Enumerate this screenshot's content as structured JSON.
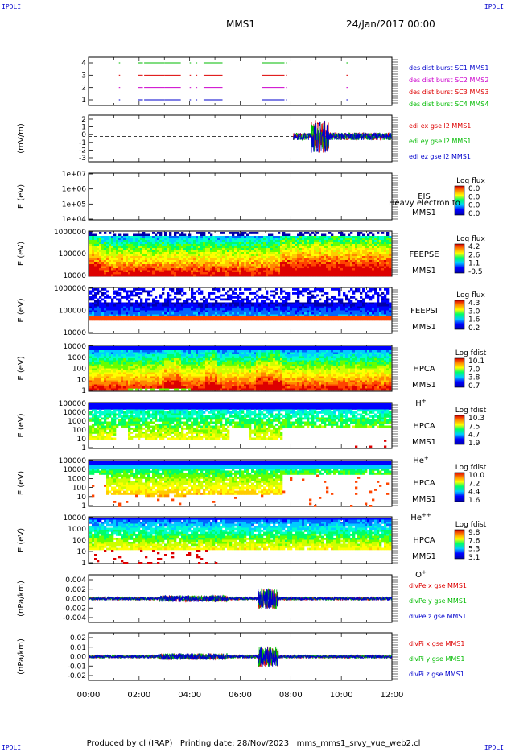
{
  "corners": {
    "tl": "IPDLI",
    "tr": "IPDLI",
    "bl": "IPDLI",
    "br": "IPDLI"
  },
  "header": {
    "mission": "MMS1",
    "date": "24/Jan/2017 00:00"
  },
  "footer": "Produced by cl (IRAP)   Printing date: 28/Nov/2023   mms_mms1_srvy_vue_web2.cl",
  "x_axis": {
    "type": "time",
    "range": [
      "00:00",
      "12:00"
    ],
    "tick_labels": [
      "00:00",
      "02:00",
      "04:00",
      "06:00",
      "08:00",
      "10:00",
      "12:00"
    ]
  },
  "colors": {
    "red": "#dd0000",
    "green": "#00bb00",
    "blue": "#0000cc",
    "magenta": "#cc00cc"
  },
  "chart_data": [
    {
      "type": "scatter",
      "panel": "burst",
      "ylabel": "",
      "ylim": [
        0.5,
        4.5
      ],
      "y_ticks": [
        "1",
        "2",
        "3",
        "4"
      ],
      "legend": [
        {
          "label": "des dist burst SC1 MMS1",
          "color": "#0000cc"
        },
        {
          "label": "des dist burst SC2 MMS2",
          "color": "#cc00cc"
        },
        {
          "label": "des dist burst SC3 MMS3",
          "color": "#dd0000"
        },
        {
          "label": "des dist burst SC4 MMS4",
          "color": "#00bb00"
        }
      ],
      "burst_intervals_hours": [
        [
          1.2,
          1.25
        ],
        [
          1.95,
          2.15
        ],
        [
          2.2,
          3.0
        ],
        [
          3.0,
          3.65
        ],
        [
          4.0,
          4.05
        ],
        [
          4.25,
          4.3
        ],
        [
          4.55,
          5.3
        ],
        [
          6.85,
          7.75
        ],
        [
          7.8,
          7.85
        ],
        [
          10.2,
          10.25
        ]
      ]
    },
    {
      "type": "line",
      "panel": "edi",
      "ylabel": "(mV/m)",
      "ylim": [
        -3,
        2.5
      ],
      "y_ticks": [
        "2",
        "1",
        "0",
        "-1",
        "-2",
        "-3"
      ],
      "reference_line": 0,
      "legend": [
        {
          "label": "edi ex gse l2 MMS1",
          "color": "#dd0000"
        },
        {
          "label": "edi ey gse l2 MMS1",
          "color": "#00bb00"
        },
        {
          "label": "edi ez gse l2 MMS1",
          "color": "#0000cc"
        }
      ],
      "data_range_hours": [
        8.1,
        12.0
      ]
    },
    {
      "type": "heatmap",
      "panel": "eis",
      "ylabel": "E (eV)",
      "y_scale": "log",
      "y_ticks": [
        "1e+07",
        "1e+06",
        "1e+05",
        "1e+04"
      ],
      "instrument": "EIS",
      "spacecraft": "MMS1",
      "note": "Heavy electron to",
      "colorbar": {
        "title": "Log flux",
        "labels": [
          "0.0",
          "0.0",
          "0.0",
          "0.0"
        ]
      }
    },
    {
      "type": "heatmap",
      "panel": "feepse",
      "ylabel": "E (eV)",
      "y_scale": "log",
      "y_ticks": [
        "1000000",
        "100000",
        "10000"
      ],
      "instrument": "FEEPSE",
      "spacecraft": "MMS1",
      "colorbar": {
        "title": "Log flux",
        "labels": [
          "4.2",
          "2.6",
          "1.1",
          "-0.5"
        ]
      }
    },
    {
      "type": "heatmap",
      "panel": "feepsi",
      "ylabel": "E (eV)",
      "y_scale": "log",
      "y_ticks": [
        "1000000",
        "100000",
        "10000"
      ],
      "instrument": "FEEPSI",
      "spacecraft": "MMS1",
      "colorbar": {
        "title": "Log flux",
        "labels": [
          "4.3",
          "3.0",
          "1.6",
          "0.2"
        ]
      }
    },
    {
      "type": "heatmap",
      "panel": "hpca_h",
      "ylabel": "E (eV)",
      "y_scale": "log",
      "y_ticks": [
        "10000",
        "1000",
        "100",
        "10",
        "1"
      ],
      "instrument": "HPCA",
      "spacecraft": "MMS1",
      "species": "H",
      "species_sup": "+",
      "colorbar": {
        "title": "Log fdist",
        "labels": [
          "10.1",
          "7.0",
          "3.8",
          "0.7"
        ]
      }
    },
    {
      "type": "heatmap",
      "panel": "hpca_he",
      "ylabel": "E (eV)",
      "y_scale": "log",
      "y_ticks": [
        "100000",
        "10000",
        "1000",
        "100",
        "10",
        "1"
      ],
      "instrument": "HPCA",
      "spacecraft": "MMS1",
      "species": "He",
      "species_sup": "+",
      "colorbar": {
        "title": "Log fdist",
        "labels": [
          "10.3",
          "7.5",
          "4.7",
          "1.9"
        ]
      }
    },
    {
      "type": "heatmap",
      "panel": "hpca_hepp",
      "ylabel": "E (eV)",
      "y_scale": "log",
      "y_ticks": [
        "100000",
        "10000",
        "1000",
        "100",
        "10",
        "1"
      ],
      "instrument": "HPCA",
      "spacecraft": "MMS1",
      "species": "He",
      "species_sup": "++",
      "colorbar": {
        "title": "Log fdist",
        "labels": [
          "10.0",
          "7.2",
          "4.4",
          "1.6"
        ]
      }
    },
    {
      "type": "heatmap",
      "panel": "hpca_o",
      "ylabel": "E (eV)",
      "y_scale": "log",
      "y_ticks": [
        "10000",
        "1000",
        "100",
        "10",
        "1"
      ],
      "instrument": "HPCA",
      "spacecraft": "MMS1",
      "species": "O",
      "species_sup": "+",
      "colorbar": {
        "title": "Log fdist",
        "labels": [
          "9.8",
          "7.6",
          "5.3",
          "3.1"
        ]
      }
    },
    {
      "type": "line",
      "panel": "divpe",
      "ylabel": "(nPa/km)",
      "ylim": [
        -0.005,
        0.005
      ],
      "y_ticks": [
        "0.004",
        "0.002",
        "0.000",
        "-0.002",
        "-0.004"
      ],
      "legend": [
        {
          "label": "divPe x gse MMS1",
          "color": "#dd0000"
        },
        {
          "label": "divPe y gse MMS1",
          "color": "#00bb00"
        },
        {
          "label": "divPe z gse MMS1",
          "color": "#0000cc"
        }
      ]
    },
    {
      "type": "line",
      "panel": "divpi",
      "ylabel": "(nPa/km)",
      "ylim": [
        -0.025,
        0.025
      ],
      "y_ticks": [
        "0.02",
        "0.01",
        "0.00",
        "-0.01",
        "-0.02"
      ],
      "legend": [
        {
          "label": "divPi x gse MMS1",
          "color": "#dd0000"
        },
        {
          "label": "divPi y gse MMS1",
          "color": "#00bb00"
        },
        {
          "label": "divPi z gse MMS1",
          "color": "#0000cc"
        }
      ]
    }
  ]
}
